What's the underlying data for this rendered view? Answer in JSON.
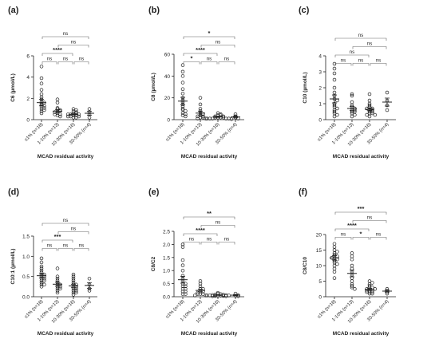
{
  "figure": {
    "category_labels": [
      "≤1% (n=18)",
      "1-10% (n=13)",
      "10-30% (n=16)",
      "30-50% (n=4)"
    ]
  },
  "chart_data": [
    {
      "panel_label": "(a)",
      "type": "scatter",
      "ylabel": "C6 (µmol/L)",
      "xlabel": "MCAD residual activity",
      "ylim": [
        0,
        6
      ],
      "yticks": [
        "0",
        "2",
        "4",
        "6"
      ],
      "categories": [
        "≤1% (n=18)",
        "1-10% (n=13)",
        "10-30% (n=16)",
        "30-50% (n=4)"
      ],
      "groups": [
        {
          "values": [
            5.0,
            3.9,
            3.4,
            2.8,
            2.4,
            2.1,
            1.9,
            1.7,
            1.6,
            1.5,
            1.4,
            1.3,
            1.2,
            1.1,
            1.0,
            0.9,
            0.8,
            0.6
          ],
          "mean": 1.6,
          "sem": 0.3
        },
        {
          "values": [
            1.9,
            1.6,
            1.1,
            1.0,
            0.9,
            0.8,
            0.8,
            0.7,
            0.6,
            0.5,
            0.5,
            0.4,
            0.3
          ],
          "mean": 0.8,
          "sem": 0.15
        },
        {
          "values": [
            1.0,
            0.9,
            0.8,
            0.7,
            0.6,
            0.6,
            0.5,
            0.5,
            0.5,
            0.4,
            0.4,
            0.3,
            0.3,
            0.3,
            0.2,
            0.2
          ],
          "mean": 0.5,
          "sem": 0.06
        },
        {
          "values": [
            1.0,
            0.7,
            0.5,
            0.2
          ],
          "mean": 0.6,
          "sem": 0.2
        }
      ],
      "comparisons": [
        {
          "from": 0,
          "to": 1,
          "label": "ns",
          "level": 0
        },
        {
          "from": 1,
          "to": 2,
          "label": "ns",
          "level": 0
        },
        {
          "from": 2,
          "to": 3,
          "label": "ns",
          "level": 0
        },
        {
          "from": 0,
          "to": 2,
          "label": "****",
          "level": 1
        },
        {
          "from": 1,
          "to": 3,
          "label": "ns",
          "level": 2
        },
        {
          "from": 0,
          "to": 3,
          "label": "ns",
          "level": 3
        }
      ]
    },
    {
      "panel_label": "(b)",
      "type": "scatter",
      "ylabel": "C8 (µmol/L)",
      "xlabel": "MCAD residual activity",
      "ylim": [
        0,
        60
      ],
      "yticks": [
        "0",
        "20",
        "40",
        "60"
      ],
      "categories": [
        "≤1% (n=18)",
        "1-10% (n=13)",
        "10-30% (n=16)",
        "30-50% (n=4)"
      ],
      "groups": [
        {
          "values": [
            50,
            44,
            40,
            34,
            28,
            24,
            20,
            18,
            16,
            14,
            12,
            10,
            9,
            8,
            6,
            5,
            4,
            3
          ],
          "mean": 17,
          "sem": 3.5
        },
        {
          "values": [
            20,
            14,
            10,
            8,
            6,
            5,
            4,
            3,
            3,
            2,
            2,
            1,
            1
          ],
          "mean": 6,
          "sem": 1.8
        },
        {
          "values": [
            6,
            5,
            4,
            4,
            3,
            3,
            2,
            2,
            2,
            2,
            1,
            1,
            1,
            1,
            1,
            0.5
          ],
          "mean": 2.5,
          "sem": 0.5
        },
        {
          "values": [
            5,
            3,
            2,
            1
          ],
          "mean": 2.5,
          "sem": 0.9
        }
      ],
      "comparisons": [
        {
          "from": 0,
          "to": 1,
          "label": "*",
          "level": 0
        },
        {
          "from": 1,
          "to": 2,
          "label": "ns",
          "level": 0
        },
        {
          "from": 2,
          "to": 3,
          "label": "ns",
          "level": 0
        },
        {
          "from": 0,
          "to": 2,
          "label": "****",
          "level": 1
        },
        {
          "from": 1,
          "to": 3,
          "label": "ns",
          "level": 2
        },
        {
          "from": 0,
          "to": 3,
          "label": "*",
          "level": 3
        }
      ]
    },
    {
      "panel_label": "(c)",
      "type": "scatter",
      "ylabel": "C10 (µmol/L)",
      "xlabel": "MCAD residual activity",
      "ylim": [
        0,
        4
      ],
      "yticks": [
        "0",
        "1",
        "2",
        "3",
        "4"
      ],
      "categories": [
        "≤1% (n=18)",
        "1-10% (n=13)",
        "10-30% (n=16)",
        "30-50% (n=4)"
      ],
      "groups": [
        {
          "values": [
            3.5,
            3.2,
            2.9,
            2.5,
            2.0,
            1.7,
            1.5,
            1.3,
            1.2,
            1.0,
            0.9,
            0.8,
            0.7,
            0.6,
            0.5,
            0.4,
            0.3,
            0.2
          ],
          "mean": 1.3,
          "sem": 0.25
        },
        {
          "values": [
            1.6,
            1.5,
            1.1,
            0.9,
            0.8,
            0.7,
            0.6,
            0.6,
            0.5,
            0.5,
            0.4,
            0.3,
            0.2
          ],
          "mean": 0.7,
          "sem": 0.12
        },
        {
          "values": [
            1.6,
            1.2,
            1.0,
            0.9,
            0.8,
            0.7,
            0.7,
            0.6,
            0.6,
            0.5,
            0.5,
            0.4,
            0.4,
            0.3,
            0.3,
            0.2
          ],
          "mean": 0.65,
          "sem": 0.09
        },
        {
          "values": [
            1.7,
            1.2,
            0.9,
            0.6
          ],
          "mean": 1.1,
          "sem": 0.25
        }
      ],
      "comparisons": [
        {
          "from": 0,
          "to": 1,
          "label": "ns",
          "level": 0
        },
        {
          "from": 1,
          "to": 2,
          "label": "ns",
          "level": 0
        },
        {
          "from": 2,
          "to": 3,
          "label": "ns",
          "level": 0
        },
        {
          "from": 0,
          "to": 2,
          "label": "ns",
          "level": 1
        },
        {
          "from": 1,
          "to": 3,
          "label": "ns",
          "level": 2
        },
        {
          "from": 0,
          "to": 3,
          "label": "ns",
          "level": 3
        }
      ]
    },
    {
      "panel_label": "(d)",
      "type": "scatter",
      "ylabel": "C10:1 (µmol/L)",
      "xlabel": "MCAD residual activity",
      "ylim": [
        0,
        1.5
      ],
      "yticks": [
        "0.0",
        "0.5",
        "1.0",
        "1.5"
      ],
      "categories": [
        "≤1% (n=18)",
        "1-10% (n=13)",
        "10-30% (n=16)",
        "30-50% (n=4)"
      ],
      "groups": [
        {
          "values": [
            0.95,
            0.85,
            0.75,
            0.7,
            0.65,
            0.6,
            0.55,
            0.55,
            0.5,
            0.5,
            0.45,
            0.45,
            0.4,
            0.4,
            0.35,
            0.3,
            0.3,
            0.25
          ],
          "mean": 0.52,
          "sem": 0.05
        },
        {
          "values": [
            0.7,
            0.5,
            0.45,
            0.4,
            0.35,
            0.3,
            0.3,
            0.25,
            0.25,
            0.2,
            0.2,
            0.15,
            0.1
          ],
          "mean": 0.31,
          "sem": 0.05
        },
        {
          "values": [
            0.55,
            0.5,
            0.45,
            0.4,
            0.35,
            0.3,
            0.3,
            0.25,
            0.25,
            0.2,
            0.2,
            0.15,
            0.15,
            0.1,
            0.1,
            0.05
          ],
          "mean": 0.27,
          "sem": 0.04
        },
        {
          "values": [
            0.45,
            0.3,
            0.2,
            0.15
          ],
          "mean": 0.28,
          "sem": 0.07
        }
      ],
      "comparisons": [
        {
          "from": 0,
          "to": 1,
          "label": "ns",
          "level": 0
        },
        {
          "from": 1,
          "to": 2,
          "label": "ns",
          "level": 0
        },
        {
          "from": 2,
          "to": 3,
          "label": "ns",
          "level": 0
        },
        {
          "from": 0,
          "to": 2,
          "label": "***",
          "level": 1
        },
        {
          "from": 1,
          "to": 3,
          "label": "ns",
          "level": 2
        },
        {
          "from": 0,
          "to": 3,
          "label": "ns",
          "level": 3
        }
      ]
    },
    {
      "panel_label": "(e)",
      "type": "scatter",
      "ylabel": "C8/C2",
      "xlabel": "MCAD residual activity",
      "ylim": [
        0,
        2.5
      ],
      "yticks": [
        "0.0",
        "0.5",
        "1.0",
        "1.5",
        "2.0",
        "2.5"
      ],
      "categories": [
        "≤1% (n=18)",
        "1-10% (n=13)",
        "10-30% (n=16)",
        "30-50% (n=4)"
      ],
      "groups": [
        {
          "values": [
            2.0,
            1.9,
            1.4,
            1.2,
            1.0,
            0.8,
            0.7,
            0.6,
            0.5,
            0.5,
            0.4,
            0.4,
            0.3,
            0.3,
            0.2,
            0.2,
            0.1,
            0.1
          ],
          "mean": 0.65,
          "sem": 0.13
        },
        {
          "values": [
            0.6,
            0.5,
            0.4,
            0.3,
            0.3,
            0.2,
            0.2,
            0.15,
            0.1,
            0.1,
            0.1,
            0.05,
            0.05
          ],
          "mean": 0.24,
          "sem": 0.05
        },
        {
          "values": [
            0.15,
            0.12,
            0.1,
            0.08,
            0.08,
            0.07,
            0.06,
            0.05,
            0.05,
            0.05,
            0.04,
            0.04,
            0.03,
            0.03,
            0.02,
            0.02
          ],
          "mean": 0.06,
          "sem": 0.01
        },
        {
          "values": [
            0.12,
            0.06,
            0.04,
            0.02
          ],
          "mean": 0.06,
          "sem": 0.02
        }
      ],
      "comparisons": [
        {
          "from": 0,
          "to": 1,
          "label": "ns",
          "level": 0
        },
        {
          "from": 1,
          "to": 2,
          "label": "ns",
          "level": 0
        },
        {
          "from": 2,
          "to": 3,
          "label": "ns",
          "level": 0
        },
        {
          "from": 0,
          "to": 2,
          "label": "****",
          "level": 1
        },
        {
          "from": 1,
          "to": 3,
          "label": "ns",
          "level": 2
        },
        {
          "from": 0,
          "to": 3,
          "label": "**",
          "level": 3
        }
      ]
    },
    {
      "panel_label": "(f)",
      "type": "scatter",
      "ylabel": "C8/C10",
      "xlabel": "MCAD residual activity",
      "ylim": [
        0,
        20
      ],
      "yticks": [
        "0",
        "5",
        "10",
        "15",
        "20"
      ],
      "categories": [
        "≤1% (n=18)",
        "1-10% (n=13)",
        "10-30% (n=16)",
        "30-50% (n=4)"
      ],
      "groups": [
        {
          "values": [
            17,
            16,
            15,
            14.5,
            14,
            13.5,
            13,
            13,
            12.5,
            12,
            12,
            11.5,
            11,
            10.5,
            10,
            9,
            8,
            6
          ],
          "mean": 12.5,
          "sem": 0.7
        },
        {
          "values": [
            14,
            13,
            12,
            10,
            9,
            8,
            7,
            6,
            5,
            4,
            3.5,
            3,
            2.5
          ],
          "mean": 7.5,
          "sem": 1.1
        },
        {
          "values": [
            5,
            4.5,
            4,
            3.5,
            3,
            3,
            2.5,
            2.5,
            2,
            2,
            2,
            1.5,
            1.5,
            1.5,
            1,
            1
          ],
          "mean": 2.4,
          "sem": 0.3
        },
        {
          "values": [
            2.5,
            2,
            1.5,
            1
          ],
          "mean": 1.8,
          "sem": 0.3
        }
      ],
      "comparisons": [
        {
          "from": 0,
          "to": 1,
          "label": "ns",
          "level": 0
        },
        {
          "from": 1,
          "to": 2,
          "label": "*",
          "level": 0
        },
        {
          "from": 2,
          "to": 3,
          "label": "ns",
          "level": 0
        },
        {
          "from": 0,
          "to": 2,
          "label": "****",
          "level": 1
        },
        {
          "from": 1,
          "to": 3,
          "label": "ns",
          "level": 2
        },
        {
          "from": 0,
          "to": 3,
          "label": "***",
          "level": 3
        }
      ]
    }
  ]
}
